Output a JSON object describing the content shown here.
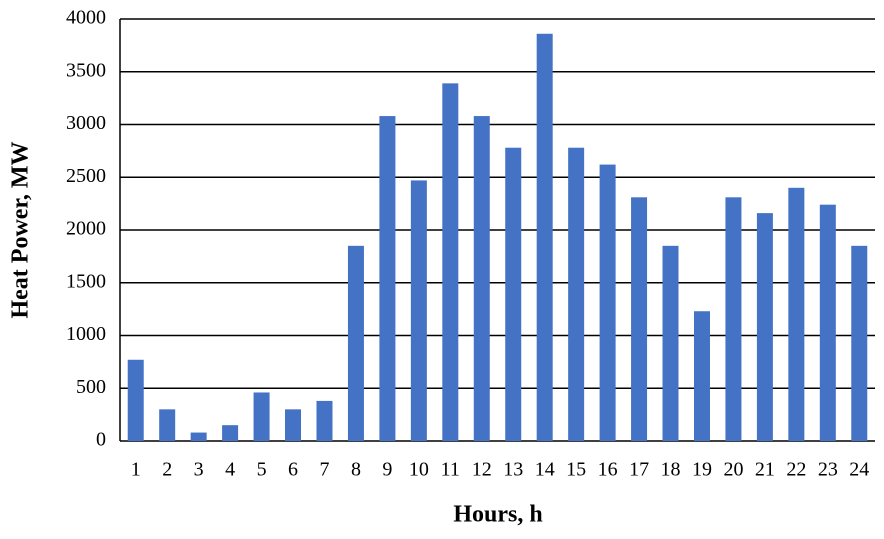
{
  "chart_data": {
    "type": "bar",
    "x_label": "Hours, h",
    "y_label": "Heat Power, MW",
    "categories": [
      "1",
      "2",
      "3",
      "4",
      "5",
      "6",
      "7",
      "8",
      "9",
      "10",
      "11",
      "12",
      "13",
      "14",
      "15",
      "16",
      "17",
      "18",
      "19",
      "20",
      "21",
      "22",
      "23",
      "24"
    ],
    "values": [
      770,
      300,
      80,
      150,
      460,
      300,
      380,
      1850,
      3080,
      2470,
      3390,
      3080,
      2780,
      3860,
      2780,
      2620,
      2310,
      1850,
      1230,
      2310,
      2160,
      2400,
      2240,
      1850
    ],
    "color": "#4472c4",
    "ylim": [
      0,
      4000
    ],
    "yticks": [
      0,
      500,
      1000,
      1500,
      2000,
      2500,
      3000,
      3500,
      4000
    ],
    "grid": true
  }
}
